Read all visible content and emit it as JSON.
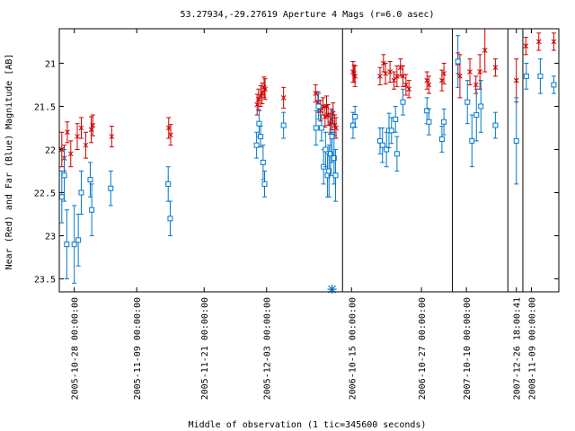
{
  "chart_data": {
    "type": "scatter",
    "title": "53.27934,-29.27619   Aperture 4 Mags (r=6.0 asec)",
    "xlabel": "Middle of observation (1 tic=345600 seconds)",
    "ylabel": "Near (Red) and Far (Blue) Magnitude [AB]",
    "ylim": [
      23.65,
      20.6
    ],
    "y_reversed": true,
    "y_ticks": [
      "21",
      "21.5",
      "22",
      "22.5",
      "23",
      "23.5"
    ],
    "x_tick_labels": [
      "2005-10-28 00:00:00",
      "2005-11-09 00:00:00",
      "2005-11-21 00:00:00",
      "2005-12-03 00:00:00",
      "2006-10-15 00:00:00",
      "2006-10-27 00:00:00",
      "2007-10-10 00:00:00",
      "2007-12-26 18:00:41",
      "2008-11-09 00:00:00"
    ],
    "grid": false,
    "legend": "none",
    "colors": {
      "near": "#cc0000",
      "far": "#0077cc"
    },
    "series": [
      {
        "marker": "x",
        "color": "#cc0000",
        "points": [
          {
            "x": 0.5,
            "y": 22.0,
            "e": 0.2
          },
          {
            "x": 1.0,
            "y": 22.1,
            "e": 0.15
          },
          {
            "x": 1.6,
            "y": 21.8,
            "e": 0.12
          },
          {
            "x": 2.3,
            "y": 22.05,
            "e": 0.15
          },
          {
            "x": 3.6,
            "y": 21.85,
            "e": 0.15
          },
          {
            "x": 4.4,
            "y": 21.75,
            "e": 0.12
          },
          {
            "x": 5.3,
            "y": 21.95,
            "e": 0.15
          },
          {
            "x": 6.4,
            "y": 21.77,
            "e": 0.15
          },
          {
            "x": 6.7,
            "y": 21.72,
            "e": 0.12
          },
          {
            "x": 10.5,
            "y": 21.85,
            "e": 0.12
          },
          {
            "x": 21.9,
            "y": 21.75,
            "e": 0.12
          },
          {
            "x": 22.3,
            "y": 21.83,
            "e": 0.12
          },
          {
            "x": 39.6,
            "y": 21.48,
            "e": 0.12
          },
          {
            "x": 39.9,
            "y": 21.42,
            "e": 0.12
          },
          {
            "x": 40.3,
            "y": 21.38,
            "e": 0.12
          },
          {
            "x": 40.6,
            "y": 21.35,
            "e": 0.12
          },
          {
            "x": 41.0,
            "y": 21.28,
            "e": 0.12
          },
          {
            "x": 41.2,
            "y": 21.3,
            "e": 0.12
          },
          {
            "x": 44.9,
            "y": 21.4,
            "e": 0.12
          },
          {
            "x": 51.3,
            "y": 21.35,
            "e": 0.1
          },
          {
            "x": 51.8,
            "y": 21.45,
            "e": 0.12
          },
          {
            "x": 52.3,
            "y": 21.55,
            "e": 0.12
          },
          {
            "x": 52.8,
            "y": 21.5,
            "e": 0.1
          },
          {
            "x": 53.2,
            "y": 21.62,
            "e": 0.12
          },
          {
            "x": 53.5,
            "y": 21.5,
            "e": 0.12
          },
          {
            "x": 53.8,
            "y": 21.6,
            "e": 0.12
          },
          {
            "x": 54.2,
            "y": 21.7,
            "e": 0.12
          },
          {
            "x": 54.5,
            "y": 21.65,
            "e": 0.12
          },
          {
            "x": 54.8,
            "y": 21.58,
            "e": 0.12
          },
          {
            "x": 55.1,
            "y": 21.72,
            "e": 0.12
          },
          {
            "x": 55.4,
            "y": 21.75,
            "e": 0.12
          },
          {
            "x": 58.8,
            "y": 21.1,
            "e": 0.12
          },
          {
            "x": 59.0,
            "y": 21.12,
            "e": 0.1
          },
          {
            "x": 59.2,
            "y": 21.15,
            "e": 0.12
          },
          {
            "x": 64.2,
            "y": 21.15,
            "e": 0.1
          },
          {
            "x": 64.9,
            "y": 21.0,
            "e": 0.1
          },
          {
            "x": 65.3,
            "y": 21.12,
            "e": 0.12
          },
          {
            "x": 66.2,
            "y": 21.1,
            "e": 0.12
          },
          {
            "x": 67.0,
            "y": 21.2,
            "e": 0.1
          },
          {
            "x": 67.6,
            "y": 21.15,
            "e": 0.12
          },
          {
            "x": 68.3,
            "y": 21.05,
            "e": 0.1
          },
          {
            "x": 68.8,
            "y": 21.15,
            "e": 0.12
          },
          {
            "x": 69.4,
            "y": 21.25,
            "e": 0.12
          },
          {
            "x": 70.0,
            "y": 21.3,
            "e": 0.1
          },
          {
            "x": 73.6,
            "y": 21.2,
            "e": 0.1
          },
          {
            "x": 74.0,
            "y": 21.25,
            "e": 0.1
          },
          {
            "x": 76.6,
            "y": 21.2,
            "e": 0.12
          },
          {
            "x": 77.0,
            "y": 21.12,
            "e": 0.12
          },
          {
            "x": 79.8,
            "y": 21.0,
            "e": 0.12
          },
          {
            "x": 80.2,
            "y": 21.15,
            "e": 0.25
          },
          {
            "x": 82.2,
            "y": 21.1,
            "e": 0.15
          },
          {
            "x": 83.4,
            "y": 21.25,
            "e": 0.1
          },
          {
            "x": 84.2,
            "y": 21.1,
            "e": 0.2
          },
          {
            "x": 85.2,
            "y": 20.85,
            "e": 0.25
          },
          {
            "x": 87.3,
            "y": 21.05,
            "e": 0.1
          },
          {
            "x": 91.5,
            "y": 21.2,
            "e": 0.25
          },
          {
            "x": 93.4,
            "y": 20.8,
            "e": 0.1
          },
          {
            "x": 96.0,
            "y": 20.75,
            "e": 0.1
          },
          {
            "x": 99.0,
            "y": 20.75,
            "e": 0.1
          }
        ]
      },
      {
        "marker": "square",
        "color": "#0077cc",
        "points": [
          {
            "x": 0.5,
            "y": 22.55,
            "e": 0.3
          },
          {
            "x": 1.0,
            "y": 22.3,
            "e": 0.3
          },
          {
            "x": 1.5,
            "y": 23.1,
            "e": 0.4
          },
          {
            "x": 3.0,
            "y": 23.1,
            "e": 0.45
          },
          {
            "x": 3.8,
            "y": 23.05,
            "e": 0.3
          },
          {
            "x": 4.4,
            "y": 22.5,
            "e": 0.25
          },
          {
            "x": 6.2,
            "y": 22.35,
            "e": 0.2
          },
          {
            "x": 6.5,
            "y": 22.7,
            "e": 0.3
          },
          {
            "x": 10.3,
            "y": 22.45,
            "e": 0.2
          },
          {
            "x": 21.8,
            "y": 22.4,
            "e": 0.2
          },
          {
            "x": 22.2,
            "y": 22.8,
            "e": 0.2
          },
          {
            "x": 39.5,
            "y": 21.95,
            "e": 0.15
          },
          {
            "x": 40.0,
            "y": 21.7,
            "e": 0.15
          },
          {
            "x": 40.3,
            "y": 21.85,
            "e": 0.12
          },
          {
            "x": 40.8,
            "y": 22.15,
            "e": 0.2
          },
          {
            "x": 41.1,
            "y": 22.4,
            "e": 0.15
          },
          {
            "x": 44.9,
            "y": 21.72,
            "e": 0.15
          },
          {
            "x": 51.4,
            "y": 21.75,
            "e": 0.2
          },
          {
            "x": 51.9,
            "y": 21.5,
            "e": 0.15
          },
          {
            "x": 52.5,
            "y": 21.75,
            "e": 0.15
          },
          {
            "x": 52.9,
            "y": 22.2,
            "e": 0.2
          },
          {
            "x": 53.3,
            "y": 22.0,
            "e": 0.2
          },
          {
            "x": 53.7,
            "y": 22.3,
            "e": 0.25
          },
          {
            "x": 54.0,
            "y": 22.25,
            "e": 0.3
          },
          {
            "x": 54.3,
            "y": 22.05,
            "e": 0.25
          },
          {
            "x": 54.6,
            "y": 21.85,
            "e": 0.3
          },
          {
            "x": 55.0,
            "y": 22.1,
            "e": 0.3
          },
          {
            "x": 55.3,
            "y": 22.3,
            "e": 0.3
          },
          {
            "x": 58.8,
            "y": 21.72,
            "e": 0.15
          },
          {
            "x": 59.2,
            "y": 21.62,
            "e": 0.12
          },
          {
            "x": 64.2,
            "y": 21.9,
            "e": 0.15
          },
          {
            "x": 64.7,
            "y": 21.95,
            "e": 0.2
          },
          {
            "x": 65.5,
            "y": 22.0,
            "e": 0.2
          },
          {
            "x": 66.0,
            "y": 21.78,
            "e": 0.2
          },
          {
            "x": 66.5,
            "y": 21.78,
            "e": 0.15
          },
          {
            "x": 67.3,
            "y": 21.65,
            "e": 0.15
          },
          {
            "x": 67.6,
            "y": 22.05,
            "e": 0.2
          },
          {
            "x": 68.8,
            "y": 21.45,
            "e": 0.15
          },
          {
            "x": 73.6,
            "y": 21.55,
            "e": 0.15
          },
          {
            "x": 74.0,
            "y": 21.68,
            "e": 0.15
          },
          {
            "x": 76.6,
            "y": 21.88,
            "e": 0.15
          },
          {
            "x": 77.0,
            "y": 21.68,
            "e": 0.15
          },
          {
            "x": 79.8,
            "y": 20.98,
            "e": 0.3
          },
          {
            "x": 81.7,
            "y": 21.45,
            "e": 0.25
          },
          {
            "x": 82.6,
            "y": 21.9,
            "e": 0.3
          },
          {
            "x": 83.5,
            "y": 21.6,
            "e": 0.3
          },
          {
            "x": 84.4,
            "y": 21.5,
            "e": 0.3
          },
          {
            "x": 87.3,
            "y": 21.72,
            "e": 0.15
          },
          {
            "x": 91.5,
            "y": 21.9,
            "e": 0.5
          },
          {
            "x": 93.5,
            "y": 21.15,
            "e": 0.15
          },
          {
            "x": 96.3,
            "y": 21.15,
            "e": 0.2
          },
          {
            "x": 99.0,
            "y": 21.25,
            "e": 0.1
          }
        ]
      }
    ],
    "separators": [
      56.7,
      78.7,
      89.8,
      92.8
    ],
    "special_marker": {
      "x": 54.6,
      "y": 23.62,
      "color": "#0077cc"
    }
  }
}
